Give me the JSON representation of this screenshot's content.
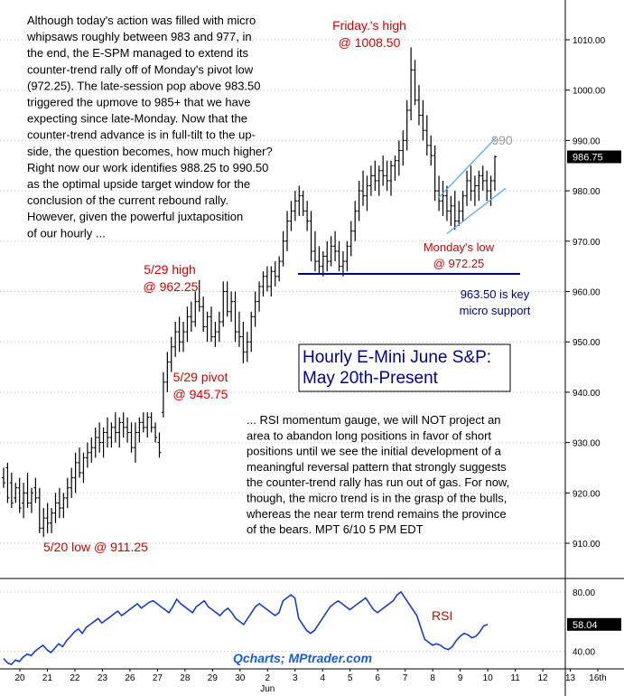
{
  "chart_data": [
    {
      "type": "bar",
      "title": "Hourly E-Mini June S&P:",
      "subtitle": "May 20th-Present",
      "ylim": [
        903,
        1017
      ],
      "yticks": [
        "1010.00",
        "1000.00",
        "990.00",
        "980.00",
        "970.00",
        "960.00",
        "950.00",
        "940.00",
        "930.00",
        "920.00",
        "910.00"
      ],
      "ytick_values": [
        1010,
        1000,
        990,
        980,
        970,
        960,
        950,
        940,
        930,
        920,
        910
      ],
      "last_price": "986.75",
      "last_price_value": 986.75,
      "bars": [
        [
          923,
          925,
          921,
          922
        ],
        [
          925,
          926,
          918,
          919
        ],
        [
          922,
          924,
          917,
          918
        ],
        [
          919,
          922,
          918,
          921
        ],
        [
          921,
          923,
          916,
          917
        ],
        [
          918,
          922,
          915,
          920
        ],
        [
          920,
          924,
          917,
          918
        ],
        [
          918,
          921,
          916,
          920
        ],
        [
          921,
          923,
          918,
          919
        ],
        [
          919,
          921,
          912,
          913
        ],
        [
          913,
          917,
          911.25,
          915
        ],
        [
          915,
          918,
          912,
          914
        ],
        [
          914,
          917,
          912,
          916
        ],
        [
          916,
          920,
          914,
          918
        ],
        [
          918,
          921,
          915,
          917
        ],
        [
          917,
          920,
          915,
          919
        ],
        [
          919,
          923,
          917,
          921
        ],
        [
          921,
          925,
          919,
          923
        ],
        [
          923,
          928,
          920,
          926
        ],
        [
          926,
          929,
          923,
          924
        ],
        [
          924,
          928,
          922,
          927
        ],
        [
          927,
          930,
          925,
          928
        ],
        [
          928,
          931,
          926,
          929
        ],
        [
          929,
          933,
          927,
          931
        ],
        [
          931,
          934,
          928,
          930
        ],
        [
          930,
          933,
          927,
          932
        ],
        [
          932,
          935,
          929,
          931
        ],
        [
          931,
          934,
          929,
          933
        ],
        [
          933,
          936,
          930,
          932
        ],
        [
          932,
          935,
          929,
          934
        ],
        [
          934,
          936,
          931,
          933
        ],
        [
          933,
          935,
          930,
          932
        ],
        [
          932,
          934,
          928,
          929
        ],
        [
          929,
          934,
          926,
          932
        ],
        [
          932,
          935,
          930,
          934
        ],
        [
          934,
          936,
          932,
          933
        ],
        [
          933,
          936,
          931,
          935
        ],
        [
          935,
          936,
          932,
          933
        ],
        [
          933,
          934,
          930,
          931
        ],
        [
          930,
          932,
          927,
          928
        ],
        [
          936,
          944,
          935,
          942
        ],
        [
          942,
          948,
          940,
          946
        ],
        [
          946,
          951,
          944,
          949
        ],
        [
          949,
          954,
          947,
          952
        ],
        [
          952,
          955,
          948,
          950
        ],
        [
          950,
          954,
          948,
          952
        ],
        [
          952,
          957,
          950,
          955
        ],
        [
          955,
          958,
          952,
          954
        ],
        [
          954,
          960,
          953,
          958
        ],
        [
          958,
          962.25,
          956,
          957
        ],
        [
          957,
          959,
          952,
          953
        ],
        [
          953,
          956,
          950,
          955
        ],
        [
          955,
          957,
          950,
          951
        ],
        [
          951,
          954,
          949,
          952
        ],
        [
          952,
          956,
          950,
          954
        ],
        [
          954,
          962,
          953,
          960
        ],
        [
          960,
          962,
          955,
          956
        ],
        [
          956,
          960,
          954,
          958
        ],
        [
          958,
          960,
          950,
          952
        ],
        [
          952,
          956,
          949,
          951
        ],
        [
          951,
          954,
          945.75,
          948
        ],
        [
          948,
          952,
          946,
          950
        ],
        [
          950,
          956,
          948,
          955
        ],
        [
          955,
          960,
          953,
          958
        ],
        [
          958,
          962,
          956,
          961
        ],
        [
          961,
          964,
          959,
          963
        ],
        [
          963,
          965,
          960,
          961
        ],
        [
          961,
          965,
          959,
          964
        ],
        [
          964,
          966,
          961,
          963
        ],
        [
          963,
          967,
          962,
          966
        ],
        [
          966,
          972,
          965,
          970
        ],
        [
          970,
          976,
          968,
          974
        ],
        [
          974,
          978,
          972,
          976
        ],
        [
          976,
          980,
          974,
          978
        ],
        [
          978,
          981,
          975,
          979
        ],
        [
          979,
          980,
          975,
          976
        ],
        [
          976,
          978,
          972,
          974
        ],
        [
          974,
          976,
          966,
          968
        ],
        [
          968,
          972,
          964,
          966
        ],
        [
          966,
          969,
          963.5,
          965
        ],
        [
          965,
          968,
          963,
          967
        ],
        [
          967,
          970,
          964,
          966
        ],
        [
          966,
          971,
          965,
          969
        ],
        [
          969,
          972,
          966,
          968
        ],
        [
          968,
          970,
          964,
          965
        ],
        [
          965,
          968,
          963,
          966
        ],
        [
          966,
          970,
          964,
          969
        ],
        [
          969,
          974,
          967,
          972
        ],
        [
          972,
          978,
          970,
          976
        ],
        [
          976,
          982,
          974,
          980
        ],
        [
          980,
          984,
          977,
          979
        ],
        [
          979,
          983,
          976,
          981
        ],
        [
          981,
          985,
          979,
          983
        ],
        [
          983,
          986,
          980,
          982
        ],
        [
          982,
          985,
          979,
          984
        ],
        [
          984,
          987,
          981,
          983
        ],
        [
          983,
          986,
          980,
          982
        ],
        [
          982,
          986,
          979,
          985
        ],
        [
          985,
          987,
          982,
          986
        ],
        [
          986,
          990,
          983,
          988
        ],
        [
          988,
          992,
          985,
          990
        ],
        [
          990,
          998,
          988,
          996
        ],
        [
          996,
          1008.5,
          994,
          1004
        ],
        [
          1004,
          1006,
          997,
          998
        ],
        [
          998,
          1001,
          993,
          995
        ],
        [
          995,
          998,
          990,
          992
        ],
        [
          992,
          995,
          987,
          989
        ],
        [
          989,
          991,
          985,
          987
        ],
        [
          987,
          989,
          978,
          980
        ],
        [
          980,
          983,
          976,
          978
        ],
        [
          978,
          982,
          975,
          979
        ],
        [
          979,
          981,
          974,
          976
        ],
        [
          976,
          979,
          973,
          977
        ],
        [
          977,
          980,
          972.25,
          974
        ],
        [
          974,
          978,
          973,
          976
        ],
        [
          976,
          980,
          974,
          979
        ],
        [
          979,
          984,
          977,
          982
        ],
        [
          982,
          985,
          978,
          980
        ],
        [
          980,
          983,
          977,
          981
        ],
        [
          981,
          984,
          978,
          983
        ],
        [
          983,
          985,
          980,
          982
        ],
        [
          982,
          984,
          978,
          980
        ],
        [
          980,
          983,
          977,
          982
        ],
        [
          982,
          987,
          980,
          986.75
        ]
      ],
      "trendline": {
        "price": 963.5,
        "label_line1": "963.50 is key",
        "label_line2": "micro support"
      },
      "channel_label": "990",
      "annotations": [
        {
          "line1": "Friday.'s high",
          "line2": "@ 1008.50"
        },
        {
          "line1": "Monday's low",
          "line2": "@ 972.25"
        },
        {
          "line1": "5/29 high",
          "line2": "@ 962.25"
        },
        {
          "line1": "5/29 pivot",
          "line2": "@ 945.75"
        },
        {
          "line1": "5/20 low @ 911.25",
          "line2": ""
        }
      ]
    },
    {
      "type": "line",
      "ylim": [
        28,
        86
      ],
      "yticks": [
        "80.00",
        "40.00"
      ],
      "ytick_values": [
        80,
        40
      ],
      "last_value": "58.04",
      "last_value_num": 58.04,
      "series_label": "RSI",
      "values": [
        35,
        32,
        31,
        34,
        33,
        36,
        38,
        37,
        40,
        42,
        44,
        41,
        39,
        42,
        45,
        43,
        47,
        50,
        53,
        55,
        52,
        56,
        58,
        60,
        62,
        59,
        61,
        63,
        65,
        67,
        64,
        66,
        68,
        70,
        72,
        69,
        71,
        73,
        74,
        72,
        70,
        68,
        66,
        70,
        75,
        72,
        70,
        68,
        66,
        70,
        72,
        74,
        70,
        68,
        66,
        64,
        67,
        69,
        66,
        62,
        60,
        58,
        62,
        66,
        70,
        72,
        70,
        68,
        66,
        64,
        66,
        74,
        76,
        78,
        76,
        62,
        58,
        54,
        52,
        54,
        58,
        62,
        66,
        70,
        72,
        74,
        72,
        70,
        68,
        70,
        72,
        74,
        76,
        72,
        68,
        66,
        68,
        70,
        72,
        74,
        78,
        80,
        76,
        72,
        68,
        64,
        56,
        48,
        46,
        44,
        45,
        44,
        42,
        41,
        43,
        47,
        50,
        52,
        51,
        49,
        50,
        53,
        57,
        58.04
      ]
    }
  ],
  "x_axis": {
    "labels": [
      "20",
      "21",
      "22",
      "23",
      "26",
      "27",
      "28",
      "29",
      "30",
      "2",
      "3",
      "4",
      "5",
      "6",
      "7",
      "8",
      "9",
      "10",
      "11",
      "12",
      "13",
      "16th"
    ],
    "month_label": "Jun"
  },
  "commentary": {
    "top": [
      "Although today's action was filled with micro",
      "whipsaws roughly between 983 and 977, in",
      "the end, the E-SPM managed to extend its",
      "counter-trend rally off of Monday's pivot low",
      "(972.25). The late-session pop above 983.50",
      "triggered the upmove to 985+ that we have",
      "expecting since late-Monday. Now that the",
      "counter-trend advance is in full-tilt to the up-",
      "side, the question becomes, how much higher?",
      "Right now our work identifies 988.25 to 990.50",
      "as the optimal upside target window for the",
      "conclusion of the current rebound rally.",
      "However, given the powerful juxtaposition",
      "of our hourly ..."
    ],
    "bottom": [
      "... RSI momentum gauge, we will NOT project an",
      "area to abandon long positions in favor of short",
      "positions until we see the initial development of a",
      "meaningful reversal pattern that strongly suggests",
      "the counter-trend rally has run out of gas. For now,",
      "though, the micro trend is in the grasp of the bulls,",
      "whereas the near term trend remains the province",
      "of the bears. MPT 6/10 5 PM EDT"
    ]
  },
  "watermark": "Qcharts; MPtrader.com",
  "colors": {
    "price": "#000000",
    "annotation": "#d00000",
    "support": "#00008b",
    "channel": "#5aa9e6",
    "rsi": "#1a3cc8",
    "title": "#00008b",
    "watermark": "#1b5fc6"
  }
}
